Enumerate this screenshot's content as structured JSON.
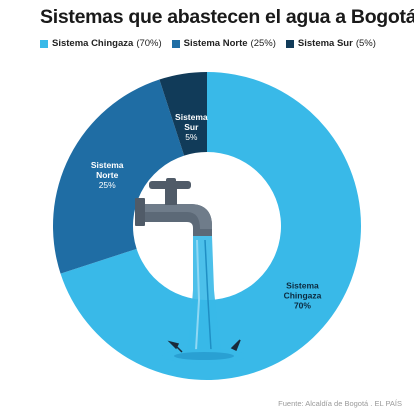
{
  "title": "Sistemas que abastecen el agua a Bogotá",
  "legend": [
    {
      "name": "Sistema Chingaza",
      "pct": "(70%)",
      "color": "#39b9e8"
    },
    {
      "name": "Sistema Norte",
      "pct": "(25%)",
      "color": "#1f6da4"
    },
    {
      "name": "Sistema Sur",
      "pct": "(5%)",
      "color": "#113b59"
    }
  ],
  "source": "Fuente: Alcaldía de Bogotá . EL PAÍS",
  "chart_data": {
    "type": "pie",
    "title": "Sistemas que abastecen el agua a Bogotá",
    "slices": [
      {
        "label": "Sistema Chingaza",
        "value": 70,
        "value_label": "70%",
        "color": "#39b9e8"
      },
      {
        "label": "Sistema Norte",
        "value": 25,
        "value_label": "25%",
        "color": "#1f6da4"
      },
      {
        "label": "Sistema Sur",
        "value": 5,
        "value_label": "5%",
        "color": "#113b59"
      }
    ],
    "donut": true,
    "legend_position": "top-left"
  }
}
